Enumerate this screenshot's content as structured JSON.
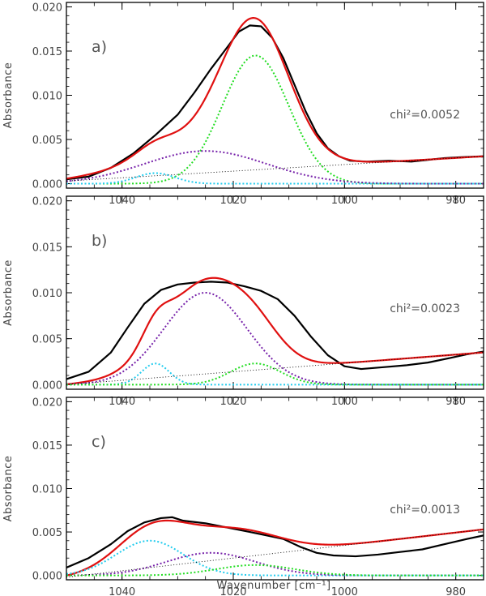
{
  "chart_data": {
    "type": "line",
    "xlabel": "Wavenumber [cm⁻¹]",
    "ylabel": "Absorbance",
    "xlim": [
      1050,
      975
    ],
    "ylim": [
      -0.0005,
      0.0205
    ],
    "x_ticks": [
      1040,
      1020,
      1000,
      980
    ],
    "x_tick_labels": [
      "1040",
      "1020",
      "1000",
      "980"
    ],
    "y_ticks": [
      0.0,
      0.005,
      0.01,
      0.015,
      0.02
    ],
    "y_tick_labels": [
      "0.000",
      "0.005",
      "0.010",
      "0.015",
      "0.020"
    ],
    "grid": false,
    "panels": [
      {
        "label": "a)",
        "chi_text": "chi²=0.0052",
        "series": [
          {
            "role": "data",
            "color": "#000000",
            "style": "solid",
            "points": [
              [
                1050,
                0.0005
              ],
              [
                1046,
                0.0008
              ],
              [
                1042,
                0.0018
              ],
              [
                1038,
                0.0034
              ],
              [
                1034,
                0.0055
              ],
              [
                1030,
                0.0078
              ],
              [
                1027,
                0.0103
              ],
              [
                1024,
                0.013
              ],
              [
                1021,
                0.0155
              ],
              [
                1019,
                0.0172
              ],
              [
                1017,
                0.0179
              ],
              [
                1015,
                0.0178
              ],
              [
                1013,
                0.0165
              ],
              [
                1011,
                0.0142
              ],
              [
                1009,
                0.0112
              ],
              [
                1007,
                0.0082
              ],
              [
                1005,
                0.0057
              ],
              [
                1003,
                0.004
              ],
              [
                1001,
                0.0031
              ],
              [
                999,
                0.0026
              ],
              [
                996,
                0.0025
              ],
              [
                992,
                0.0026
              ],
              [
                988,
                0.0025
              ],
              [
                985,
                0.0027
              ],
              [
                982,
                0.0029
              ],
              [
                979,
                0.003
              ],
              [
                975,
                0.0031
              ]
            ]
          },
          {
            "role": "fit",
            "color": "#e01010",
            "style": "solid",
            "model": {
              "baseline": [
                1050,
                0.0003,
                975,
                0.0031
              ],
              "gaussians": [
                [
                  1016,
                  6.0,
                  0.0145
                ],
                [
                  1025,
                  11.0,
                  0.0037
                ],
                [
                  1034,
                  3.5,
                  0.0012
                ]
              ]
            }
          },
          {
            "role": "component",
            "color": "#22dd22",
            "style": "dotted",
            "model": {
              "gaussians": [
                [
                  1016,
                  6.0,
                  0.0145
                ]
              ]
            }
          },
          {
            "role": "component",
            "color": "#7722aa",
            "style": "dotted",
            "model": {
              "gaussians": [
                [
                  1025,
                  11.0,
                  0.0037
                ]
              ]
            }
          },
          {
            "role": "component",
            "color": "#22ccee",
            "style": "dotted",
            "model": {
              "gaussians": [
                [
                  1034,
                  3.5,
                  0.0012
                ]
              ]
            }
          },
          {
            "role": "baseline",
            "color": "#000000",
            "style": "dotted-thin",
            "points": [
              [
                1050,
                0.0003
              ],
              [
                975,
                0.0031
              ]
            ]
          }
        ]
      },
      {
        "label": "b)",
        "chi_text": "chi²=0.0023",
        "series": [
          {
            "role": "data",
            "color": "#000000",
            "style": "solid",
            "points": [
              [
                1050,
                0.0006
              ],
              [
                1046,
                0.0014
              ],
              [
                1042,
                0.0035
              ],
              [
                1039,
                0.0062
              ],
              [
                1036,
                0.0088
              ],
              [
                1033,
                0.0103
              ],
              [
                1030,
                0.0109
              ],
              [
                1027,
                0.0111
              ],
              [
                1024,
                0.0112
              ],
              [
                1021,
                0.0111
              ],
              [
                1018,
                0.0107
              ],
              [
                1015,
                0.0102
              ],
              [
                1012,
                0.0093
              ],
              [
                1009,
                0.0075
              ],
              [
                1006,
                0.0052
              ],
              [
                1003,
                0.0032
              ],
              [
                1000,
                0.002
              ],
              [
                997,
                0.0017
              ],
              [
                993,
                0.0019
              ],
              [
                989,
                0.0021
              ],
              [
                985,
                0.0024
              ],
              [
                981,
                0.0029
              ],
              [
                978,
                0.0033
              ],
              [
                975,
                0.0036
              ]
            ]
          },
          {
            "role": "fit",
            "color": "#e01010",
            "style": "solid",
            "model": {
              "baseline": [
                1050,
                0.0,
                975,
                0.0035
              ],
              "gaussians": [
                [
                  1025,
                  7.5,
                  0.01
                ],
                [
                  1034,
                  2.5,
                  0.0023
                ],
                [
                  1016,
                  4.5,
                  0.0023
                ]
              ]
            }
          },
          {
            "role": "component",
            "color": "#7722aa",
            "style": "dotted",
            "model": {
              "gaussians": [
                [
                  1025,
                  7.5,
                  0.01
                ]
              ]
            }
          },
          {
            "role": "component",
            "color": "#22ccee",
            "style": "dotted",
            "model": {
              "gaussians": [
                [
                  1034,
                  2.5,
                  0.0023
                ]
              ]
            }
          },
          {
            "role": "component",
            "color": "#22dd22",
            "style": "dotted",
            "model": {
              "gaussians": [
                [
                  1016,
                  4.5,
                  0.0023
                ]
              ]
            }
          },
          {
            "role": "baseline",
            "color": "#000000",
            "style": "dotted-thin",
            "points": [
              [
                1050,
                0.0
              ],
              [
                975,
                0.0035
              ]
            ]
          }
        ]
      },
      {
        "label": "c)",
        "chi_text": "chi²=0.0013",
        "series": [
          {
            "role": "data",
            "color": "#000000",
            "style": "solid",
            "points": [
              [
                1050,
                0.0009
              ],
              [
                1046,
                0.002
              ],
              [
                1042,
                0.0036
              ],
              [
                1039,
                0.0051
              ],
              [
                1036,
                0.0061
              ],
              [
                1033,
                0.0066
              ],
              [
                1031,
                0.0067
              ],
              [
                1029,
                0.0063
              ],
              [
                1025,
                0.006
              ],
              [
                1021,
                0.0055
              ],
              [
                1017,
                0.005
              ],
              [
                1014,
                0.0046
              ],
              [
                1011,
                0.0042
              ],
              [
                1008,
                0.0033
              ],
              [
                1005,
                0.0026
              ],
              [
                1002,
                0.0023
              ],
              [
                998,
                0.0022
              ],
              [
                994,
                0.0024
              ],
              [
                990,
                0.0027
              ],
              [
                986,
                0.003
              ],
              [
                982,
                0.0036
              ],
              [
                978,
                0.0042
              ],
              [
                975,
                0.0046
              ]
            ]
          },
          {
            "role": "fit",
            "color": "#e01010",
            "style": "solid",
            "model": {
              "baseline": [
                1050,
                -0.0002,
                975,
                0.0053
              ],
              "gaussians": [
                [
                  1035,
                  6.0,
                  0.004
                ],
                [
                  1024,
                  8.0,
                  0.0026
                ],
                [
                  1016,
                  7.0,
                  0.0012
                ]
              ]
            }
          },
          {
            "role": "component",
            "color": "#22ccee",
            "style": "dotted",
            "model": {
              "gaussians": [
                [
                  1035,
                  6.0,
                  0.004
                ]
              ]
            }
          },
          {
            "role": "component",
            "color": "#7722aa",
            "style": "dotted",
            "model": {
              "gaussians": [
                [
                  1024,
                  8.0,
                  0.0026
                ]
              ]
            }
          },
          {
            "role": "component",
            "color": "#22dd22",
            "style": "dotted",
            "model": {
              "gaussians": [
                [
                  1016,
                  7.0,
                  0.0012
                ]
              ]
            }
          },
          {
            "role": "baseline",
            "color": "#000000",
            "style": "dotted-thin",
            "points": [
              [
                1050,
                -0.0002
              ],
              [
                975,
                0.0053
              ]
            ]
          }
        ]
      }
    ]
  }
}
